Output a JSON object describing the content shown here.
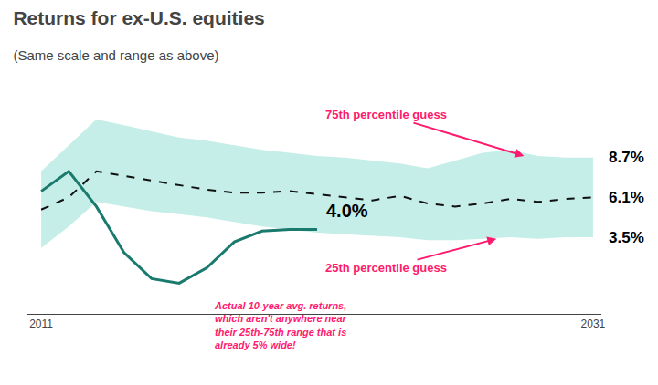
{
  "chart_data": {
    "type": "line",
    "title": "Returns for ex-U.S. equities",
    "subtitle": "(Same scale and range as above)",
    "x": [
      2011,
      2012,
      2013,
      2014,
      2015,
      2016,
      2017,
      2018,
      2019,
      2020,
      2021,
      2022,
      2023,
      2024,
      2025,
      2026,
      2027,
      2028,
      2029,
      2030,
      2031
    ],
    "series": [
      {
        "type": "band",
        "color": "#b2e8e0",
        "lower": [
          2.8,
          4.2,
          5.8,
          5.5,
          5.2,
          5.0,
          4.8,
          4.5,
          4.2,
          4.0,
          3.8,
          3.7,
          3.6,
          3.5,
          3.3,
          3.3,
          3.4,
          3.5,
          3.4,
          3.5,
          3.5
        ],
        "upper": [
          7.8,
          9.5,
          11.2,
          10.8,
          10.4,
          10.0,
          9.8,
          9.5,
          9.2,
          9.0,
          8.8,
          8.7,
          8.5,
          8.3,
          8.0,
          8.5,
          9.0,
          9.2,
          8.8,
          8.7,
          8.7
        ]
      },
      {
        "type": "line",
        "color": "#111111",
        "line_style": "dashed",
        "values": [
          5.3,
          6.1,
          7.8,
          7.5,
          7.2,
          6.9,
          6.6,
          6.4,
          6.4,
          6.5,
          6.3,
          6.1,
          5.9,
          6.2,
          5.7,
          5.5,
          5.7,
          6.0,
          5.8,
          6.0,
          6.1
        ]
      },
      {
        "type": "line",
        "color": "#1a7a6e",
        "line_style": "solid",
        "values": [
          6.5,
          7.8,
          5.5,
          2.5,
          0.8,
          0.5,
          1.5,
          3.2,
          3.9,
          4.0,
          4.0,
          null,
          null,
          null,
          null,
          null,
          null,
          null,
          null,
          null,
          null
        ]
      }
    ],
    "xlim": [
      2010.5,
      2031.3
    ],
    "xticks": [
      2011,
      2031
    ],
    "ylim": [
      -1.5,
      13.5
    ],
    "yticks": [],
    "grid": false,
    "tick_labels": "x",
    "annotations": [
      {
        "text": "8.7%",
        "y": 8.7
      },
      {
        "text": "6.1%",
        "y": 6.1
      },
      {
        "text": "3.5%",
        "y": 3.5
      },
      {
        "text": "4.0%",
        "x": 2021,
        "y": 4.0
      },
      {
        "text": "Actual 10-year avg. returns,\nwhich aren't anywhere near\ntheir 25th-75th range that is\nalready 5% wide!",
        "x": 2017.2,
        "y": -0.5,
        "color": "#ff1a6e"
      },
      {
        "text": "75th percentile guess",
        "x": 2023.5,
        "y": 11.5,
        "arrow_x": 2028.5,
        "arrow_y": 8.8,
        "color": "#ff1a6e"
      },
      {
        "text": "25th percentile guess",
        "x": 2023.5,
        "y": 1.5,
        "arrow_x": 2027.5,
        "arrow_y": 3.4,
        "color": "#ff1a6e"
      }
    ]
  }
}
